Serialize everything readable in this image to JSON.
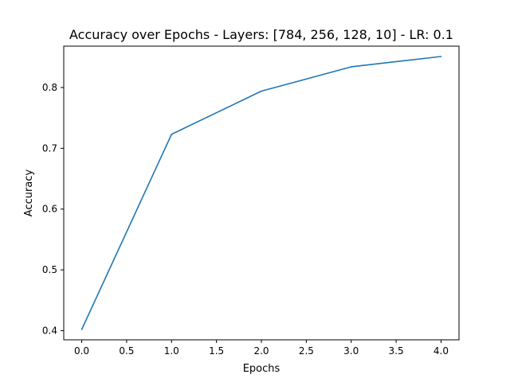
{
  "chart_data": {
    "type": "line",
    "title": "Accuracy over Epochs - Layers: [784, 256, 128, 10] - LR: 0.1",
    "xlabel": "Epochs",
    "ylabel": "Accuracy",
    "x": [
      0,
      1,
      2,
      3,
      4
    ],
    "series": [
      {
        "values": [
          0.402,
          0.723,
          0.794,
          0.834,
          0.851
        ]
      }
    ],
    "xlim": [
      -0.2,
      4.2
    ],
    "ylim": [
      0.385,
      0.868
    ],
    "xticks": [
      0.0,
      0.5,
      1.0,
      1.5,
      2.0,
      2.5,
      3.0,
      3.5,
      4.0
    ],
    "xtick_labels": [
      "0.0",
      "0.5",
      "1.0",
      "1.5",
      "2.0",
      "2.5",
      "3.0",
      "3.5",
      "4.0"
    ],
    "yticks": [
      0.4,
      0.5,
      0.6,
      0.7,
      0.8
    ],
    "ytick_labels": [
      "0.4",
      "0.5",
      "0.6",
      "0.7",
      "0.8"
    ],
    "grid": false,
    "legend": "none",
    "colors": {
      "line": "#1f77b4",
      "axes": "#000000",
      "background": "#ffffff"
    }
  }
}
